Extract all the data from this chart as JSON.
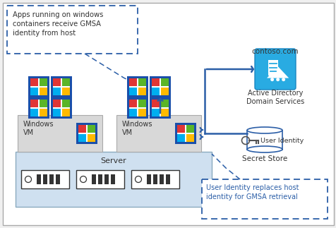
{
  "blue_arrow": "#2b5ea7",
  "blue_icon_bg": "#29abe2",
  "dashed_color": "#2b5ea7",
  "gray_vm": "#d8d8d8",
  "gray_server": "#cfe0f0",
  "white": "#ffffff",
  "light_gray_bg": "#f0f0f0",
  "text_dark": "#333333",
  "text_blue": "#2b5ea7",
  "win_red": "#e03535",
  "win_green": "#5ab528",
  "win_blue": "#00aef0",
  "win_yellow": "#ffba00",
  "win_border": "#1a4faa",
  "callout1_text": "Apps running on windows\ncontainers receive GMSA\nidentity from host",
  "callout2_text": "User Identity replaces host\nidentity for GMSA retrieval",
  "label_ad": "Active Directory\nDomain Services",
  "label_secret": "Secret Store",
  "label_contoso": "contoso.com",
  "label_server": "Server",
  "label_vm": "Windows\nVM",
  "label_user_identity": "User Identity"
}
